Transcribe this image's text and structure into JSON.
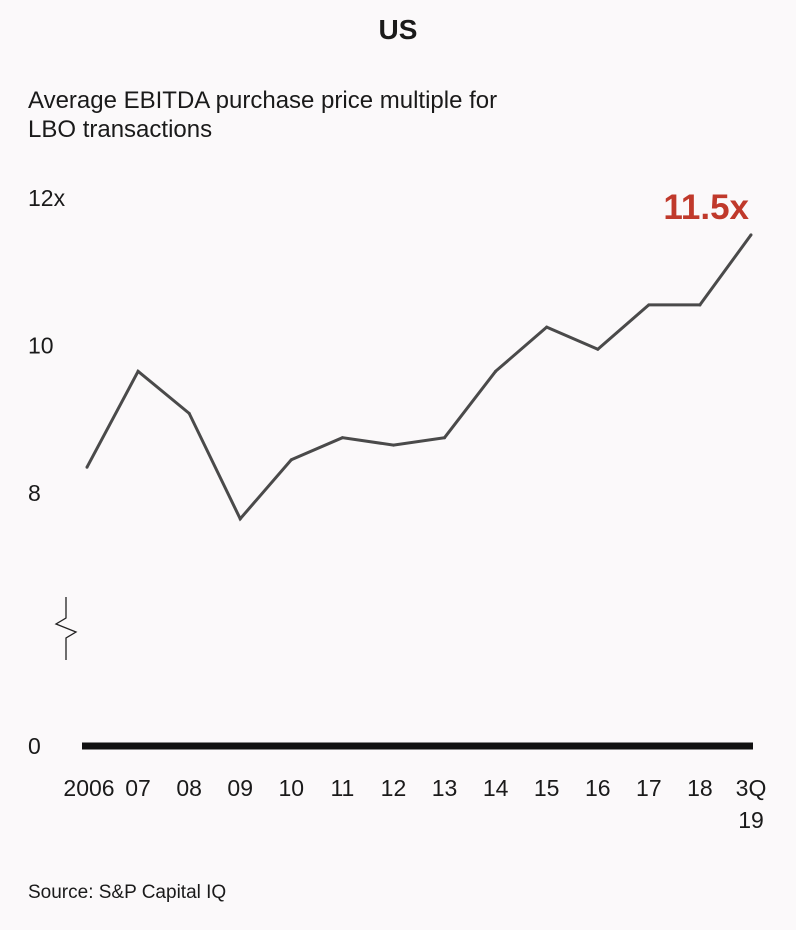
{
  "header": {
    "title": "US",
    "subtitle_line1": "Average EBITDA purchase price multiple for",
    "subtitle_line2": "LBO transactions"
  },
  "source": "Source: S&P Capital IQ",
  "colors": {
    "line": "#4a4a4a",
    "baseline": "#111111",
    "highlight": "#c0392b"
  },
  "chart_data": {
    "type": "line",
    "title": "US",
    "subtitle": "Average EBITDA purchase price multiple for LBO transactions",
    "xlabel": "",
    "ylabel": "",
    "y_axis_break": true,
    "y_tick_labels": [
      "12x",
      "10",
      "8",
      "0"
    ],
    "y_ticks": [
      12,
      10,
      8,
      0
    ],
    "ylim_upper": [
      7.5,
      12
    ],
    "categories": [
      "2006",
      "07",
      "08",
      "09",
      "10",
      "11",
      "12",
      "13",
      "14",
      "15",
      "16",
      "17",
      "18",
      "3Q 19"
    ],
    "category_labels": [
      [
        "2006"
      ],
      [
        "07"
      ],
      [
        "08"
      ],
      [
        "09"
      ],
      [
        "10"
      ],
      [
        "11"
      ],
      [
        "12"
      ],
      [
        "13"
      ],
      [
        "14"
      ],
      [
        "15"
      ],
      [
        "16"
      ],
      [
        "17"
      ],
      [
        "18"
      ],
      [
        "3Q",
        "19"
      ]
    ],
    "series": [
      {
        "name": "Average EBITDA purchase price multiple",
        "values": [
          8.35,
          9.65,
          9.08,
          7.65,
          8.45,
          8.75,
          8.65,
          8.75,
          9.65,
          10.25,
          9.95,
          10.55,
          10.55,
          11.5
        ]
      }
    ],
    "annotation": {
      "label": "11.5x",
      "index": 13
    }
  }
}
